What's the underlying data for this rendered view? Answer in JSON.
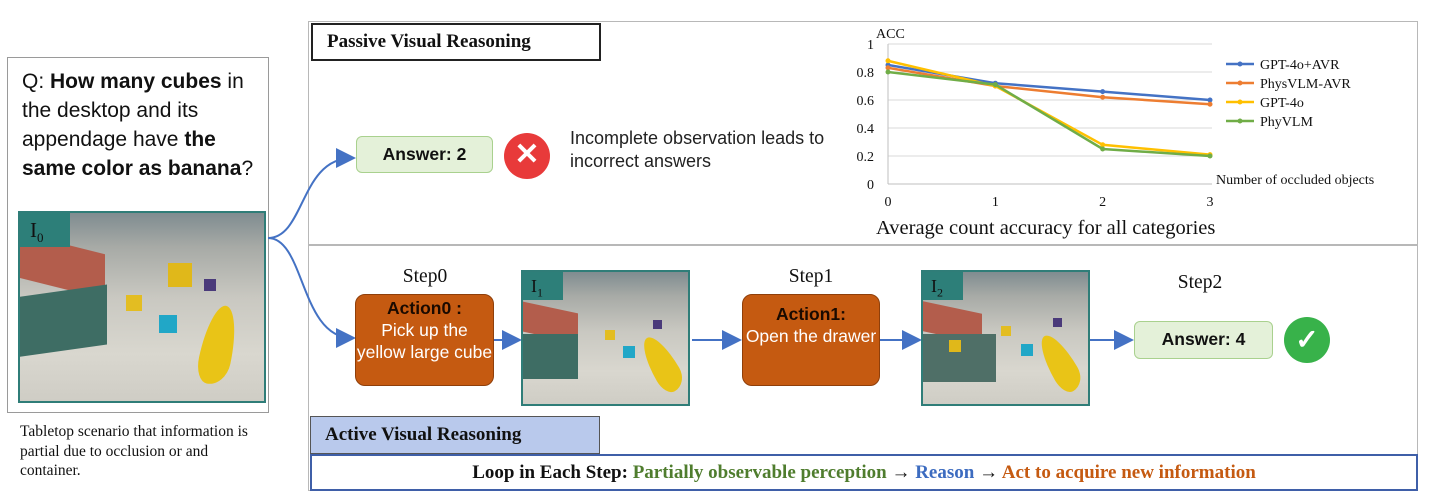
{
  "question": {
    "prefix": "Q: ",
    "part1": "How many cubes",
    "part2": " in the desktop and its appendage have ",
    "part3": "the same color as banana",
    "suffix": "?"
  },
  "images": {
    "i0": "I",
    "i0_sub": "0",
    "i1": "I",
    "i1_sub": "1",
    "i2": "I",
    "i2_sub": "2"
  },
  "left_caption": "Tabletop scenario that information is partial due to occlusion or and container.",
  "passive": {
    "title": "Passive Visual Reasoning",
    "answer": "Answer: 2",
    "note": "Incomplete observation leads to incorrect answers"
  },
  "active": {
    "title": "Active Visual Reasoning",
    "steps": [
      {
        "label": "Step0",
        "action_name": "Action0",
        "action_sep": " :",
        "action_text": "Pick up the yellow large cube"
      },
      {
        "label": "Step1",
        "action_name": "Action1",
        "action_sep": ":",
        "action_text": "Open the drawer"
      },
      {
        "label": "Step2"
      }
    ],
    "answer": "Answer: 4"
  },
  "loop": {
    "prefix": "Loop in Each Step: ",
    "part1": "Partially observable perception",
    "arrow1": " → ",
    "part2": "Reason",
    "arrow2": " → ",
    "part3": "Act to acquire new information"
  },
  "icons": {
    "wrong": "x-mark-icon",
    "right": "check-mark-icon"
  },
  "colors": {
    "green_text": "#4f7d2e",
    "blue_text": "#3d6cc0",
    "orange_action": "#c55a11",
    "answer_bg": "#e4f1d9"
  },
  "chart_data": {
    "type": "line",
    "title": "Average count accuracy for all categories",
    "ylabel": "ACC",
    "xlabel": "Number of occluded objects",
    "x": [
      0,
      1,
      2,
      3
    ],
    "xticks": [
      "0",
      "1",
      "2",
      "3"
    ],
    "yticks": [
      "0",
      "0.2",
      "0.4",
      "0.6",
      "0.8",
      "1"
    ],
    "ylim": [
      0,
      1
    ],
    "grid": "horizontal",
    "legend": "right",
    "series": [
      {
        "name": "GPT-4o+AVR",
        "color": "#4472c4",
        "values": [
          0.85,
          0.72,
          0.66,
          0.6
        ]
      },
      {
        "name": "PhysVLM-AVR",
        "color": "#ed7d31",
        "values": [
          0.83,
          0.7,
          0.62,
          0.57
        ]
      },
      {
        "name": "GPT-4o",
        "color": "#ffc000",
        "values": [
          0.88,
          0.7,
          0.28,
          0.21
        ]
      },
      {
        "name": "PhyVLM",
        "color": "#70ad47",
        "values": [
          0.8,
          0.71,
          0.25,
          0.2
        ]
      }
    ]
  }
}
